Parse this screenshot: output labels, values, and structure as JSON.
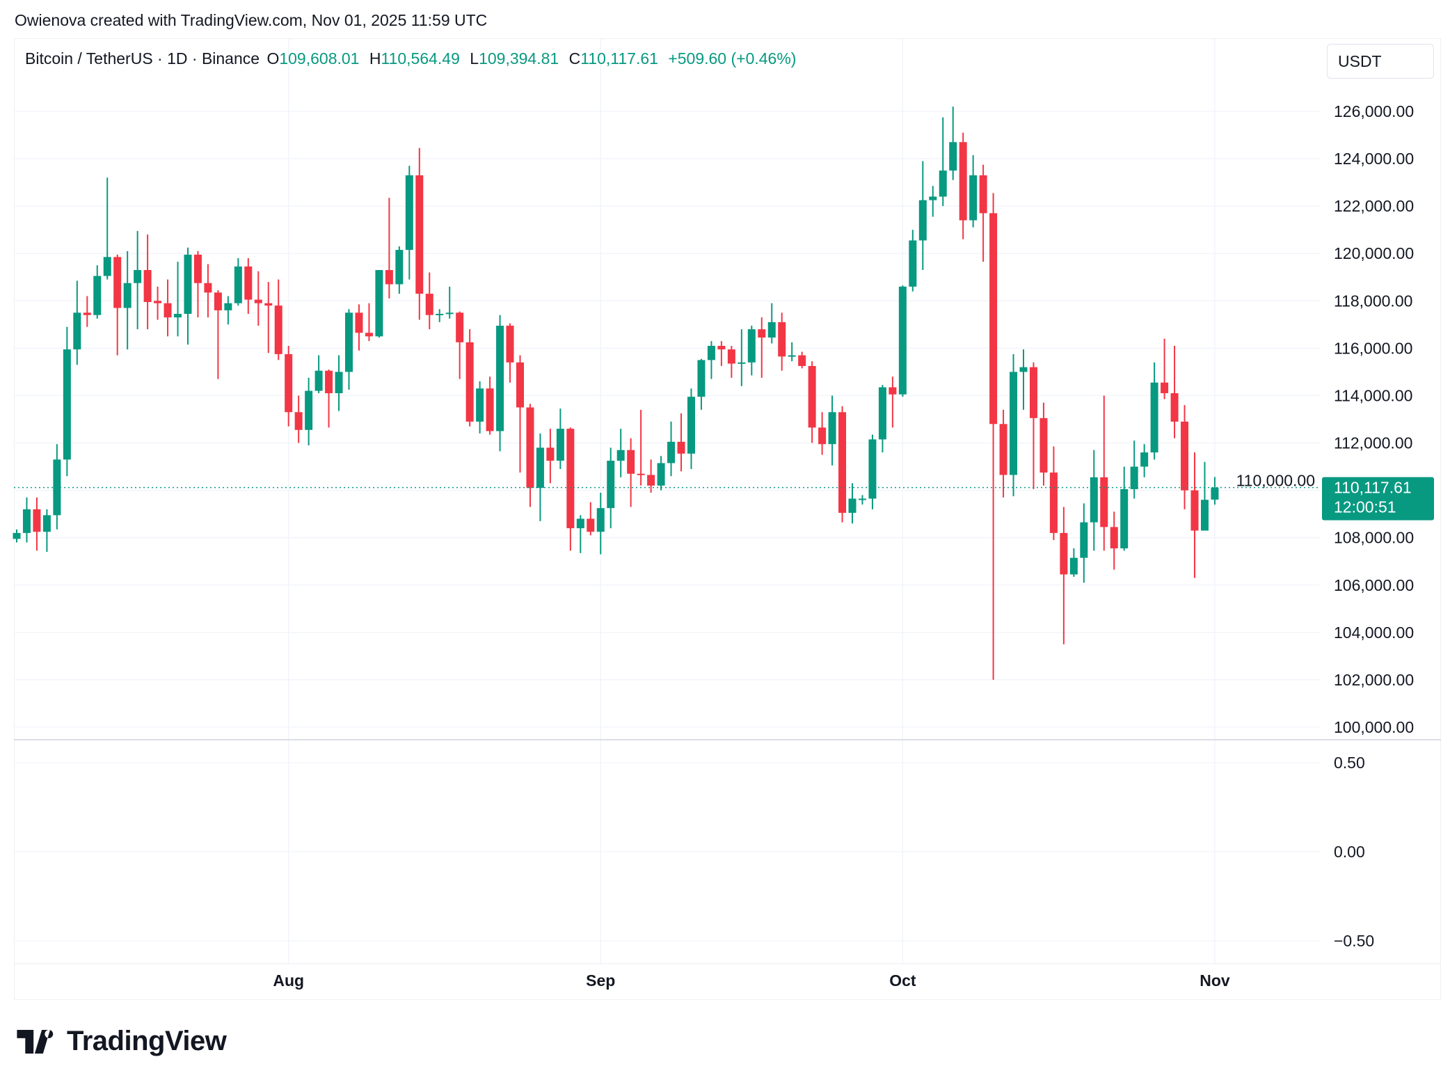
{
  "credit": "Owienova created with TradingView.com, Nov 01, 2025 11:59 UTC",
  "legend": {
    "symbol": "Bitcoin / TetherUS · 1D · Binance",
    "o_label": "O",
    "o": "109,608.01",
    "h_label": "H",
    "h": "110,564.49",
    "l_label": "L",
    "l": "109,394.81",
    "c_label": "C",
    "c": "110,117.61",
    "change": "+509.60 (+0.46%)"
  },
  "currency": "USDT",
  "logo_text": "TradingView",
  "colors": {
    "up": "#089981",
    "down": "#F23645",
    "text": "#131722",
    "grid": "#f0f3fa"
  },
  "chart_data": {
    "type": "candlestick",
    "fields": [
      "date",
      "open",
      "high",
      "low",
      "close"
    ],
    "candles": [
      [
        "2025-07-05",
        107950,
        108350,
        107800,
        108200
      ],
      [
        "2025-07-06",
        108200,
        109700,
        107800,
        109200
      ],
      [
        "2025-07-07",
        109200,
        109700,
        107450,
        108250
      ],
      [
        "2025-07-08",
        108250,
        109200,
        107400,
        108950
      ],
      [
        "2025-07-09",
        108950,
        111950,
        108350,
        111300
      ],
      [
        "2025-07-10",
        111300,
        116900,
        110600,
        115950
      ],
      [
        "2025-07-11",
        115950,
        118850,
        115300,
        117500
      ],
      [
        "2025-07-12",
        117500,
        118200,
        116900,
        117400
      ],
      [
        "2025-07-13",
        117400,
        119500,
        117250,
        119050
      ],
      [
        "2025-07-14",
        119050,
        123200,
        118900,
        119850
      ],
      [
        "2025-07-15",
        119850,
        119950,
        115700,
        117700
      ],
      [
        "2025-07-16",
        117700,
        120100,
        115950,
        118750
      ],
      [
        "2025-07-17",
        118750,
        120950,
        116800,
        119300
      ],
      [
        "2025-07-18",
        119300,
        120800,
        116800,
        117950
      ],
      [
        "2025-07-19",
        118000,
        118600,
        117200,
        117900
      ],
      [
        "2025-07-20",
        117900,
        118900,
        116500,
        117300
      ],
      [
        "2025-07-21",
        117300,
        119650,
        116500,
        117450
      ],
      [
        "2025-07-22",
        117450,
        120250,
        116150,
        119950
      ],
      [
        "2025-07-23",
        119950,
        120100,
        117300,
        118750
      ],
      [
        "2025-07-24",
        118750,
        119550,
        117300,
        118350
      ],
      [
        "2025-07-25",
        118350,
        118450,
        114700,
        117600
      ],
      [
        "2025-07-26",
        117600,
        118200,
        117000,
        117900
      ],
      [
        "2025-07-27",
        117900,
        119800,
        117800,
        119450
      ],
      [
        "2025-07-28",
        119450,
        119800,
        117450,
        118050
      ],
      [
        "2025-07-29",
        118050,
        119250,
        116950,
        117900
      ],
      [
        "2025-07-30",
        117900,
        118800,
        115800,
        117800
      ],
      [
        "2025-07-31",
        117800,
        118900,
        115500,
        115750
      ],
      [
        "2025-08-01",
        115750,
        116100,
        112700,
        113300
      ],
      [
        "2025-08-02",
        113300,
        114000,
        112000,
        112550
      ],
      [
        "2025-08-03",
        112550,
        114750,
        111900,
        114200
      ],
      [
        "2025-08-04",
        114200,
        115700,
        114100,
        115050
      ],
      [
        "2025-08-05",
        115050,
        115100,
        112650,
        114100
      ],
      [
        "2025-08-06",
        114100,
        115700,
        113350,
        115000
      ],
      [
        "2025-08-07",
        115000,
        117650,
        114250,
        117500
      ],
      [
        "2025-08-08",
        117500,
        117850,
        115900,
        116650
      ],
      [
        "2025-08-09",
        116650,
        117900,
        116300,
        116500
      ],
      [
        "2025-08-10",
        116500,
        119300,
        116450,
        119300
      ],
      [
        "2025-08-11",
        119300,
        122350,
        118100,
        118700
      ],
      [
        "2025-08-12",
        118700,
        120300,
        118300,
        120150
      ],
      [
        "2025-08-13",
        120150,
        123700,
        118900,
        123300
      ],
      [
        "2025-08-14",
        123300,
        124450,
        117200,
        118300
      ],
      [
        "2025-08-15",
        118300,
        119200,
        116800,
        117400
      ],
      [
        "2025-08-16",
        117400,
        117650,
        117100,
        117450
      ],
      [
        "2025-08-17",
        117450,
        118600,
        117250,
        117500
      ],
      [
        "2025-08-18",
        117500,
        117550,
        114700,
        116250
      ],
      [
        "2025-08-19",
        116250,
        116800,
        112700,
        112900
      ],
      [
        "2025-08-20",
        112900,
        114600,
        112400,
        114300
      ],
      [
        "2025-08-21",
        114300,
        114800,
        112350,
        112500
      ],
      [
        "2025-08-22",
        112500,
        117400,
        111650,
        116950
      ],
      [
        "2025-08-23",
        116950,
        117050,
        114550,
        115400
      ],
      [
        "2025-08-24",
        115400,
        115700,
        110750,
        113500
      ],
      [
        "2025-08-25",
        113500,
        113650,
        109300,
        110100
      ],
      [
        "2025-08-26",
        110100,
        112400,
        108700,
        111800
      ],
      [
        "2025-08-27",
        111800,
        112600,
        110300,
        111250
      ],
      [
        "2025-08-28",
        111250,
        113450,
        110900,
        112600
      ],
      [
        "2025-08-29",
        112600,
        112650,
        107450,
        108400
      ],
      [
        "2025-08-30",
        108400,
        108950,
        107350,
        108800
      ],
      [
        "2025-08-31",
        108800,
        109500,
        108100,
        108250
      ],
      [
        "2025-09-01",
        108250,
        109900,
        107300,
        109250
      ],
      [
        "2025-09-02",
        109250,
        111800,
        108400,
        111250
      ],
      [
        "2025-09-03",
        111250,
        112600,
        110550,
        111700
      ],
      [
        "2025-09-04",
        111700,
        112200,
        109300,
        110700
      ],
      [
        "2025-09-05",
        110700,
        113400,
        110200,
        110650
      ],
      [
        "2025-09-06",
        110650,
        111300,
        109900,
        110200
      ],
      [
        "2025-09-07",
        110200,
        111450,
        110000,
        111150
      ],
      [
        "2025-09-08",
        111150,
        112900,
        110600,
        112050
      ],
      [
        "2025-09-09",
        112050,
        113250,
        110800,
        111550
      ],
      [
        "2025-09-10",
        111550,
        114300,
        110900,
        113950
      ],
      [
        "2025-09-11",
        113950,
        115550,
        113400,
        115500
      ],
      [
        "2025-09-12",
        115500,
        116300,
        114700,
        116100
      ],
      [
        "2025-09-13",
        116100,
        116300,
        115250,
        115950
      ],
      [
        "2025-09-14",
        115950,
        116100,
        114750,
        115350
      ],
      [
        "2025-09-15",
        115350,
        116800,
        114400,
        115400
      ],
      [
        "2025-09-16",
        115400,
        116950,
        114850,
        116800
      ],
      [
        "2025-09-17",
        116800,
        117300,
        114750,
        116450
      ],
      [
        "2025-09-18",
        116450,
        117900,
        116200,
        117100
      ],
      [
        "2025-09-19",
        117100,
        117500,
        115050,
        115650
      ],
      [
        "2025-09-20",
        115650,
        116250,
        115450,
        115700
      ],
      [
        "2025-09-21",
        115700,
        115850,
        115150,
        115250
      ],
      [
        "2025-09-22",
        115250,
        115450,
        112000,
        112650
      ],
      [
        "2025-09-23",
        112650,
        113300,
        111500,
        111950
      ],
      [
        "2025-09-24",
        111950,
        114000,
        111050,
        113300
      ],
      [
        "2025-09-25",
        113300,
        113550,
        108650,
        109050
      ],
      [
        "2025-09-26",
        109050,
        110300,
        108600,
        109650
      ],
      [
        "2025-09-27",
        109650,
        109800,
        109400,
        109650
      ],
      [
        "2025-09-28",
        109650,
        112350,
        109200,
        112150
      ],
      [
        "2025-09-29",
        112150,
        114450,
        111600,
        114350
      ],
      [
        "2025-09-30",
        114350,
        114800,
        112650,
        114050
      ],
      [
        "2025-10-01",
        114050,
        118650,
        113950,
        118600
      ],
      [
        "2025-10-02",
        118600,
        121000,
        118400,
        120550
      ],
      [
        "2025-10-03",
        120550,
        123900,
        119300,
        122250
      ],
      [
        "2025-10-04",
        122250,
        122850,
        121550,
        122400
      ],
      [
        "2025-10-05",
        122400,
        125750,
        122000,
        123500
      ],
      [
        "2025-10-06",
        123500,
        126200,
        123100,
        124700
      ],
      [
        "2025-10-07",
        124700,
        125100,
        120600,
        121400
      ],
      [
        "2025-10-08",
        121400,
        124150,
        121100,
        123300
      ],
      [
        "2025-10-09",
        123300,
        123750,
        119650,
        121700
      ],
      [
        "2025-10-10",
        121700,
        122550,
        102000,
        112800
      ],
      [
        "2025-10-11",
        112800,
        113400,
        109700,
        110650
      ],
      [
        "2025-10-12",
        110650,
        115750,
        109750,
        115000
      ],
      [
        "2025-10-13",
        115000,
        115950,
        113400,
        115200
      ],
      [
        "2025-10-14",
        115200,
        115400,
        110050,
        113050
      ],
      [
        "2025-10-15",
        113050,
        113700,
        110200,
        110750
      ],
      [
        "2025-10-16",
        110750,
        111850,
        107900,
        108200
      ],
      [
        "2025-10-17",
        108200,
        109300,
        103500,
        106450
      ],
      [
        "2025-10-18",
        106450,
        107550,
        106350,
        107150
      ],
      [
        "2025-10-19",
        107150,
        109450,
        106100,
        108650
      ],
      [
        "2025-10-20",
        108650,
        111700,
        107450,
        110550
      ],
      [
        "2025-10-21",
        110550,
        114000,
        107450,
        108450
      ],
      [
        "2025-10-22",
        108450,
        109100,
        106650,
        107550
      ],
      [
        "2025-10-23",
        107550,
        111000,
        107450,
        110050
      ],
      [
        "2025-10-24",
        110050,
        112100,
        109650,
        111000
      ],
      [
        "2025-10-25",
        111000,
        111950,
        110550,
        111600
      ],
      [
        "2025-10-26",
        111600,
        115400,
        111300,
        114550
      ],
      [
        "2025-10-27",
        114550,
        116400,
        113850,
        114100
      ],
      [
        "2025-10-28",
        114100,
        116100,
        112200,
        112900
      ],
      [
        "2025-10-29",
        112900,
        113600,
        109200,
        110000
      ],
      [
        "2025-10-30",
        110000,
        111600,
        106300,
        108300
      ],
      [
        "2025-10-31",
        108300,
        111200,
        108300,
        109600
      ],
      [
        "2025-11-01",
        109608.01,
        110564.49,
        109394.81,
        110117.61
      ]
    ],
    "ylim": [
      100000,
      126000
    ],
    "y_ticks": [
      "126,000.00",
      "124,000.00",
      "122,000.00",
      "120,000.00",
      "118,000.00",
      "116,000.00",
      "114,000.00",
      "112,000.00",
      "110,000.00",
      "108,000.00",
      "106,000.00",
      "104,000.00",
      "102,000.00",
      "100,000.00"
    ],
    "x_ticks": [
      {
        "label": "Aug",
        "date": "2025-08-01"
      },
      {
        "label": "Sep",
        "date": "2025-09-01"
      },
      {
        "label": "Oct",
        "date": "2025-10-01"
      },
      {
        "label": "Nov",
        "date": "2025-11-01"
      }
    ],
    "last_price": {
      "value": 110117.61,
      "label": "110,117.61",
      "countdown": "12:00:51"
    },
    "lower_pane": {
      "y_ticks": [
        "0.50",
        "0.00",
        "−0.50"
      ],
      "ylim": [
        -0.5,
        0.5
      ]
    },
    "grid": true
  }
}
